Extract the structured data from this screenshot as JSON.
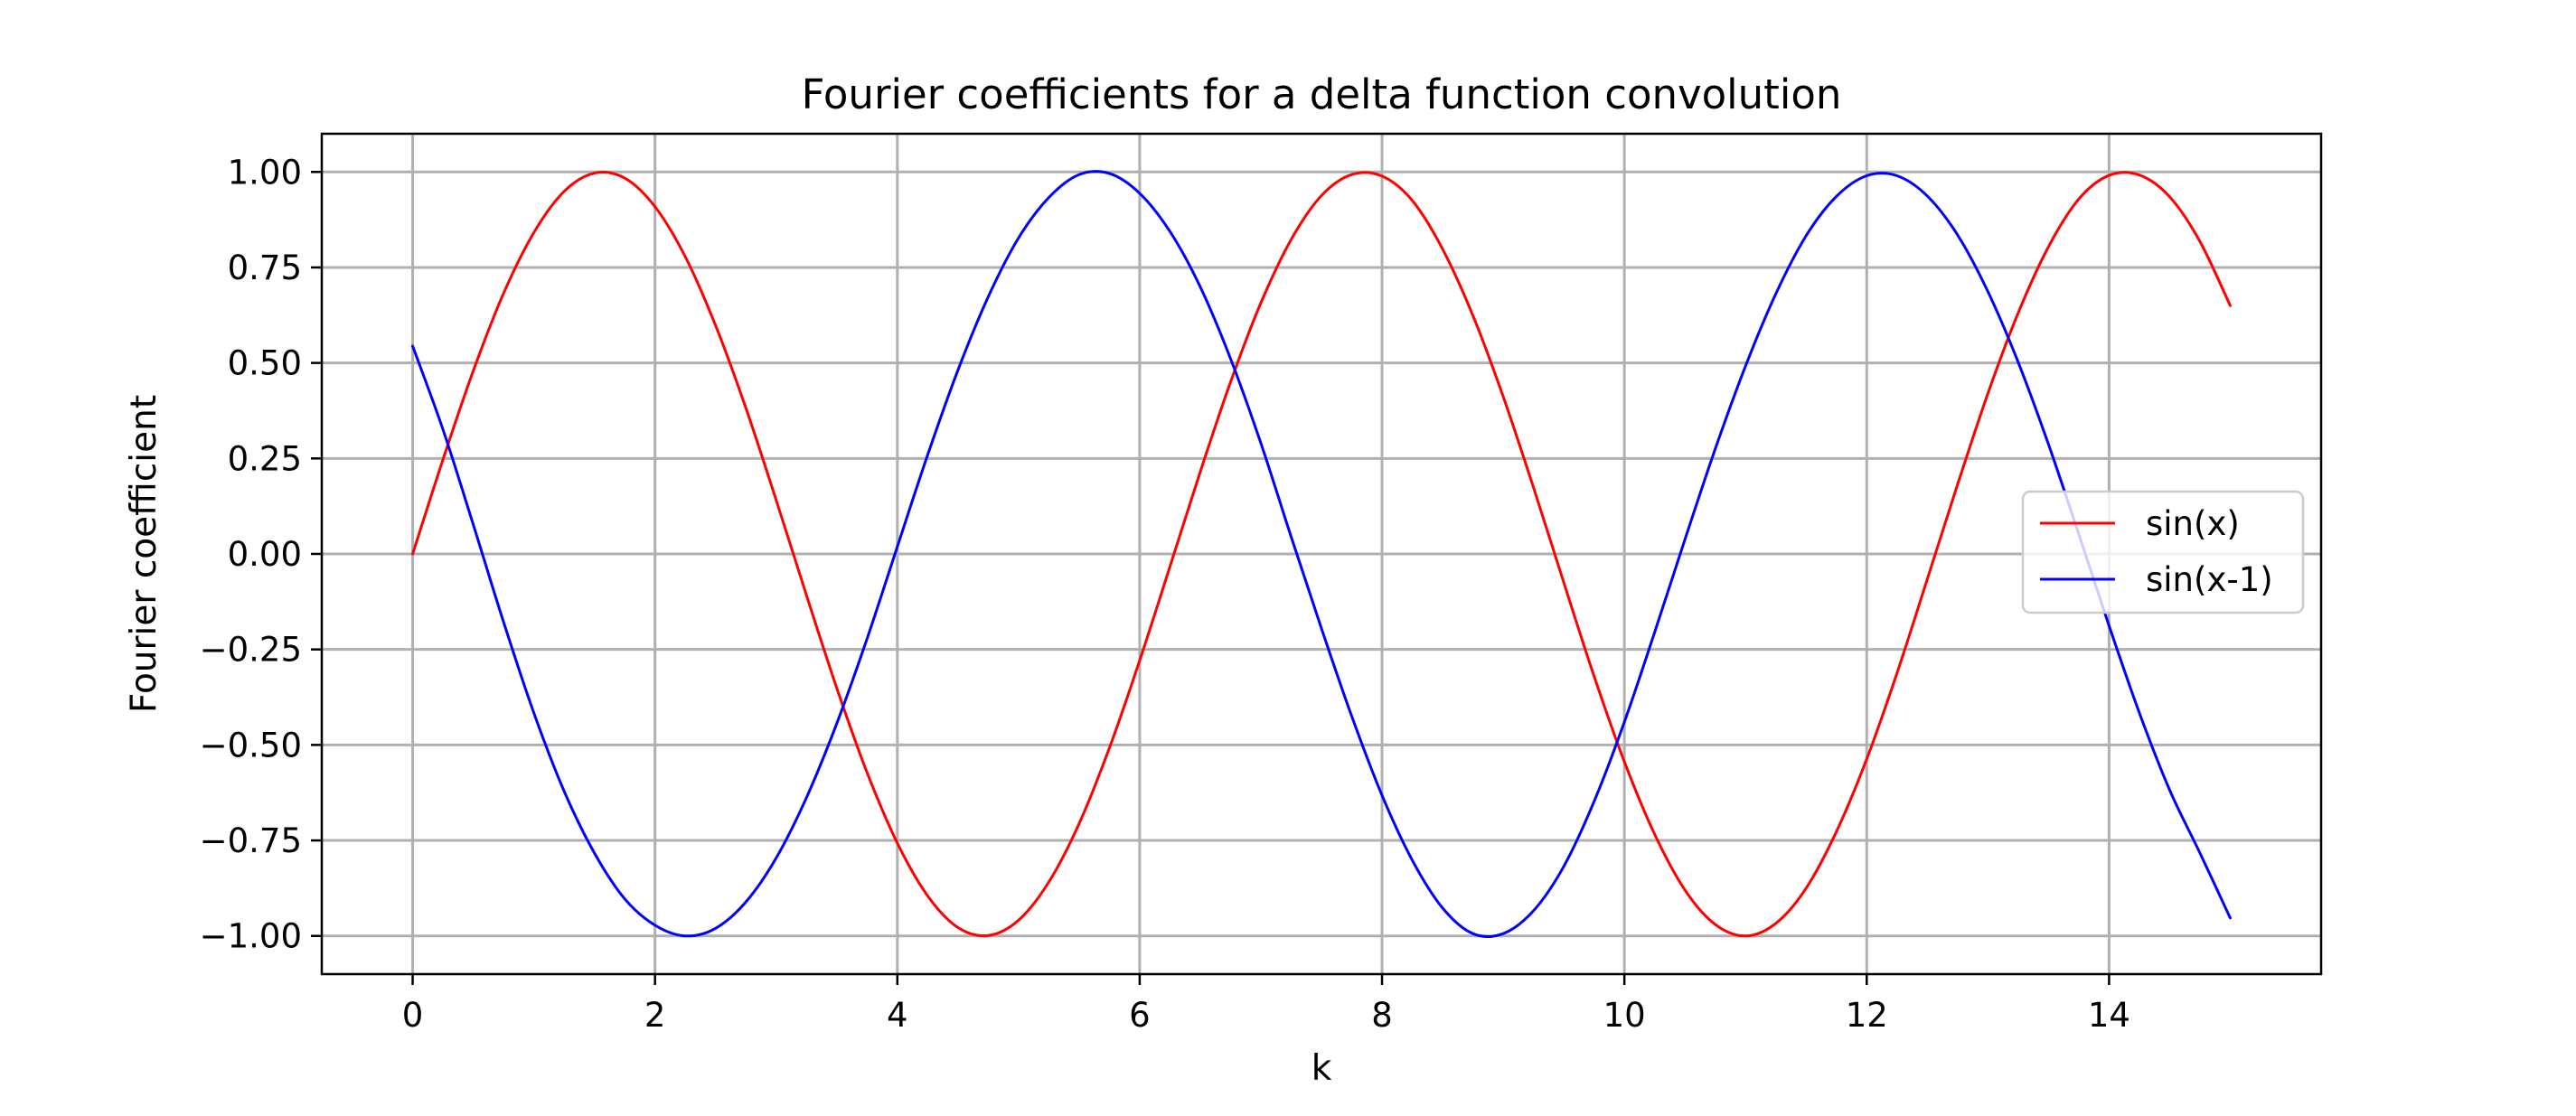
{
  "chart_data": {
    "type": "line",
    "title": "Fourier coefficients for a delta function convolution",
    "xlabel": "k",
    "ylabel": "Fourier coefficient",
    "xlim": [
      -0.75,
      15.75
    ],
    "ylim": [
      -1.1,
      1.1
    ],
    "xticks": [
      0,
      2,
      4,
      6,
      8,
      10,
      12,
      14
    ],
    "xtick_labels": [
      "0",
      "2",
      "4",
      "6",
      "8",
      "10",
      "12",
      "14"
    ],
    "yticks": [
      1.0,
      0.75,
      0.5,
      0.25,
      0.0,
      -0.25,
      -0.5,
      -0.75,
      -1.0
    ],
    "ytick_labels": [
      "1.00",
      "0.75",
      "0.50",
      "0.25",
      "0.00",
      "−0.25",
      "−0.50",
      "−0.75",
      "−1.00"
    ],
    "grid": true,
    "legend_position": "center-right",
    "series": [
      {
        "name": "sin(x)",
        "color": "#ff0000",
        "x": [
          0,
          0.25,
          0.5,
          0.75,
          1,
          1.25,
          1.5,
          1.75,
          2,
          2.25,
          2.5,
          2.75,
          3,
          3.25,
          3.5,
          3.75,
          4,
          4.25,
          4.5,
          4.75,
          5,
          5.25,
          5.5,
          5.75,
          6,
          6.25,
          6.5,
          6.75,
          7,
          7.25,
          7.5,
          7.75,
          8,
          8.25,
          8.5,
          8.75,
          9,
          9.25,
          9.5,
          9.75,
          10,
          10.25,
          10.5,
          10.75,
          11,
          11.25,
          11.5,
          11.75,
          12,
          12.25,
          12.5,
          12.75,
          13,
          13.25,
          13.5,
          13.75,
          14,
          14.25,
          14.5,
          14.75,
          15
        ],
        "values": [
          0.0,
          0.247,
          0.479,
          0.682,
          0.841,
          0.949,
          0.997,
          0.984,
          0.909,
          0.778,
          0.598,
          0.382,
          0.141,
          -0.108,
          -0.351,
          -0.572,
          -0.757,
          -0.895,
          -0.978,
          -0.999,
          -0.959,
          -0.859,
          -0.706,
          -0.508,
          -0.279,
          -0.033,
          0.215,
          0.45,
          0.657,
          0.823,
          0.938,
          0.993,
          0.989,
          0.925,
          0.798,
          0.624,
          0.412,
          0.174,
          -0.075,
          -0.32,
          -0.544,
          -0.734,
          -0.88,
          -0.97,
          -1.0,
          -0.967,
          -0.875,
          -0.727,
          -0.537,
          -0.312,
          -0.066,
          0.182,
          0.42,
          0.631,
          0.804,
          0.929,
          0.991,
          0.992,
          0.935,
          0.818,
          0.65
        ]
      },
      {
        "name": "sin(x-1)",
        "color": "#0000ff",
        "x": [
          0,
          0.25,
          0.5,
          0.75,
          1,
          1.25,
          1.5,
          1.75,
          2,
          2.25,
          2.5,
          2.75,
          3,
          3.25,
          3.5,
          3.75,
          4,
          4.25,
          4.5,
          4.75,
          5,
          5.25,
          5.5,
          5.75,
          6,
          6.25,
          6.5,
          6.75,
          7,
          7.25,
          7.5,
          7.75,
          8,
          8.25,
          8.5,
          8.75,
          9,
          9.25,
          9.5,
          9.75,
          10,
          10.25,
          10.5,
          10.75,
          11,
          11.25,
          11.5,
          11.75,
          12,
          12.25,
          12.5,
          12.75,
          13,
          13.25,
          13.5,
          13.75,
          14,
          14.25,
          14.5,
          14.75,
          15
        ],
        "values": [
          0.544,
          0.326,
          0.077,
          -0.178,
          -0.416,
          -0.621,
          -0.783,
          -0.903,
          -0.972,
          -1.0,
          -0.98,
          -0.911,
          -0.796,
          -0.638,
          -0.444,
          -0.222,
          0.019,
          0.259,
          0.481,
          0.673,
          0.827,
          0.933,
          0.993,
          0.996,
          0.944,
          0.844,
          0.699,
          0.511,
          0.29,
          0.045,
          -0.195,
          -0.425,
          -0.632,
          -0.802,
          -0.927,
          -0.994,
          -0.994,
          -0.934,
          -0.818,
          -0.648,
          -0.44,
          -0.205,
          0.038,
          0.275,
          0.492,
          0.681,
          0.833,
          0.936,
          0.99,
          0.99,
          0.937,
          0.835,
          0.687,
          0.502,
          0.287,
          0.052,
          -0.188,
          -0.416,
          -0.618,
          -0.783,
          -0.953
        ]
      }
    ]
  }
}
